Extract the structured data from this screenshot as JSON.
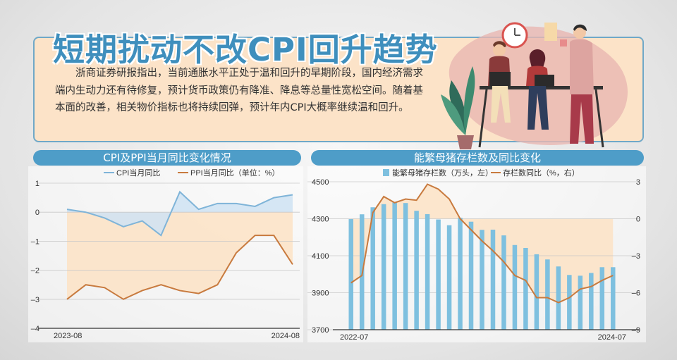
{
  "title": "短期扰动不改CPI回升趋势",
  "summary": "浙商证券研报指出，当前通胀水平正处于温和回升的早期阶段，国内经济需求端内生动力还有待修复，预计货币政策仍有降准、降息等总量性宽松空间。随着基本面的改善，相关物价指标也将持续回弹，预计年内CPI大概率继续温和回升。",
  "colors": {
    "blue_line": "#7fb4d8",
    "orange_line": "#c87a3e",
    "bar": "#7ec0df",
    "head": "#4e9dc8",
    "title": "#3f8fbd"
  },
  "chart_data": [
    {
      "type": "line",
      "title": "CPI及PPI当月同比变化情况",
      "legend": [
        "CPI当月同比",
        "PPI当月同比（单位：%）"
      ],
      "legend_placement": "top",
      "x_tick_labels": [
        "2023-08",
        "2024-08"
      ],
      "y_ticks": [
        1,
        0,
        -1,
        -2,
        -3,
        -4
      ],
      "ylim": [
        -4,
        1
      ],
      "series": [
        {
          "name": "CPI当月同比",
          "values": [
            0.1,
            0.0,
            -0.2,
            -0.5,
            -0.3,
            -0.8,
            0.7,
            0.1,
            0.3,
            0.3,
            0.2,
            0.5,
            0.6
          ]
        },
        {
          "name": "PPI当月同比（单位：%）",
          "values": [
            -3.0,
            -2.5,
            -2.6,
            -3.0,
            -2.7,
            -2.5,
            -2.7,
            -2.8,
            -2.5,
            -1.4,
            -0.8,
            -0.8,
            -1.8
          ]
        }
      ]
    },
    {
      "type": "bar",
      "title": "能繁母猪存栏数及同比变化",
      "legend": [
        "能繁母猪存栏数（万头，左）",
        "存栏数同比（%，右）"
      ],
      "legend_placement": "top",
      "x_tick_labels": [
        "2022-07",
        "2024-07"
      ],
      "y_left_ticks": [
        4500,
        4300,
        4100,
        3900,
        3700
      ],
      "y_left_lim": [
        3700,
        4500
      ],
      "y_right_ticks": [
        3,
        0,
        -3,
        -6,
        -9
      ],
      "y_right_lim": [
        -9,
        3
      ],
      "series": [
        {
          "name": "能繁母猪存栏数（万头，左）",
          "type": "bar",
          "values": [
            4298,
            4324,
            4362,
            4379,
            4390,
            4385,
            4343,
            4325,
            4296,
            4265,
            4305,
            4284,
            4240,
            4241,
            4210,
            4158,
            4142,
            4108,
            4080,
            4042,
            3996,
            3992,
            4007,
            4038,
            4038
          ]
        },
        {
          "name": "存栏数同比（%，右）",
          "type": "line",
          "values": [
            -5.2,
            -4.6,
            0.5,
            1.8,
            1.3,
            1.6,
            1.5,
            2.8,
            2.4,
            1.6,
            0.0,
            -0.9,
            -1.8,
            -2.6,
            -3.5,
            -4.6,
            -5.0,
            -6.4,
            -6.4,
            -6.8,
            -6.4,
            -5.7,
            -5.5,
            -5.0,
            -4.6
          ]
        }
      ]
    }
  ]
}
